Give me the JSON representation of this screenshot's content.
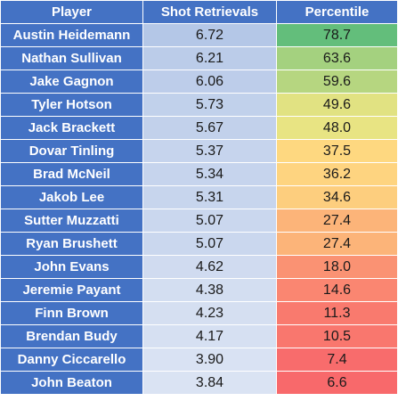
{
  "chart_data": {
    "type": "table",
    "columns": [
      "Player",
      "Shot Retrievals",
      "Percentile"
    ],
    "rows": [
      {
        "player": "Austin Heidemann",
        "shot_retrievals": "6.72",
        "percentile": "78.7"
      },
      {
        "player": "Nathan Sullivan",
        "shot_retrievals": "6.21",
        "percentile": "63.6"
      },
      {
        "player": "Jake Gagnon",
        "shot_retrievals": "6.06",
        "percentile": "59.6"
      },
      {
        "player": "Tyler Hotson",
        "shot_retrievals": "5.73",
        "percentile": "49.6"
      },
      {
        "player": "Jack Brackett",
        "shot_retrievals": "5.67",
        "percentile": "48.0"
      },
      {
        "player": "Dovar Tinling",
        "shot_retrievals": "5.37",
        "percentile": "37.5"
      },
      {
        "player": "Brad McNeil",
        "shot_retrievals": "5.34",
        "percentile": "36.2"
      },
      {
        "player": "Jakob Lee",
        "shot_retrievals": "5.31",
        "percentile": "34.6"
      },
      {
        "player": "Sutter Muzzatti",
        "shot_retrievals": "5.07",
        "percentile": "27.4"
      },
      {
        "player": "Ryan Brushett",
        "shot_retrievals": "5.07",
        "percentile": "27.4"
      },
      {
        "player": "John Evans",
        "shot_retrievals": "4.62",
        "percentile": "18.0"
      },
      {
        "player": "Jeremie Payant",
        "shot_retrievals": "4.38",
        "percentile": "14.6"
      },
      {
        "player": "Finn Brown",
        "shot_retrievals": "4.23",
        "percentile": "11.3"
      },
      {
        "player": "Brendan Budy",
        "shot_retrievals": "4.17",
        "percentile": "10.5"
      },
      {
        "player": "Danny Ciccarello",
        "shot_retrievals": "3.90",
        "percentile": "7.4"
      },
      {
        "player": "John Beaton",
        "shot_retrievals": "3.84",
        "percentile": "6.6"
      }
    ],
    "colors": {
      "header_bg": "#4472c4",
      "header_text": "#ffffff",
      "shot_high": "#b4c7e7",
      "shot_low": "#dae3f3",
      "pct_high": "#63be7b",
      "pct_mid": "#ffeb84",
      "pct_low": "#f8696b"
    }
  }
}
